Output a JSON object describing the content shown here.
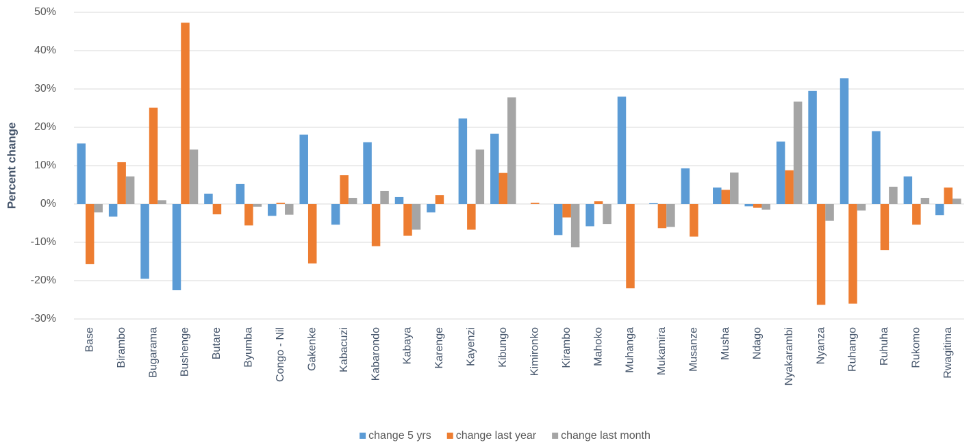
{
  "chart_data": {
    "type": "bar",
    "y_label": "Percent change",
    "categories": [
      "Base",
      "Birambo",
      "Bugarama",
      "Bushenge",
      "Butare",
      "Byumba",
      "Congo - Nil",
      "Gakenke",
      "Kabacuzi",
      "Kabarondo",
      "Kabaya",
      "Karenge",
      "Kayenzi",
      "Kibungo",
      "Kimironko",
      "Kirambo",
      "Mahoko",
      "Muhanga",
      "Mukamira",
      "Musanze",
      "Musha",
      "Ndago",
      "Nyakarambi",
      "Nyanza",
      "Ruhango",
      "Ruhuha",
      "Rukomo",
      "Rwagitima"
    ],
    "series": [
      {
        "name": "change 5 yrs",
        "color": "#5b9bd5",
        "values": [
          15.8,
          -3.3,
          -19.5,
          -22.5,
          2.7,
          5.2,
          -3.1,
          18.1,
          -5.4,
          16.1,
          1.8,
          -2.2,
          22.3,
          18.3,
          null,
          -8.1,
          -5.8,
          28.0,
          0.2,
          9.3,
          4.3,
          -0.6,
          16.3,
          29.5,
          32.8,
          19.0,
          7.2,
          -2.9
        ]
      },
      {
        "name": "change last year",
        "color": "#ed7d31",
        "values": [
          -15.7,
          10.9,
          25.1,
          47.3,
          -2.7,
          -5.6,
          0.3,
          -15.5,
          7.5,
          -11.0,
          -8.3,
          2.3,
          -6.7,
          8.1,
          0.3,
          -3.5,
          0.7,
          -22.0,
          -6.3,
          -8.5,
          3.7,
          -1.0,
          8.8,
          -26.3,
          -26.0,
          -12.0,
          -5.4,
          4.3
        ]
      },
      {
        "name": "change last month",
        "color": "#a5a5a5",
        "values": [
          -2.2,
          7.2,
          1.0,
          14.2,
          null,
          -0.7,
          -2.8,
          null,
          1.6,
          3.4,
          -6.7,
          null,
          14.2,
          27.8,
          null,
          -11.3,
          -5.2,
          null,
          -6.0,
          null,
          8.2,
          -1.5,
          26.7,
          -4.4,
          -1.7,
          4.5,
          1.6,
          1.4
        ]
      }
    ],
    "ylim": [
      -30,
      50
    ],
    "yticks": [
      {
        "value": -30,
        "label": "-30%"
      },
      {
        "value": -20,
        "label": "-20%"
      },
      {
        "value": -10,
        "label": "-10%"
      },
      {
        "value": 0,
        "label": "0%"
      },
      {
        "value": 10,
        "label": "10%"
      },
      {
        "value": 20,
        "label": "20%"
      },
      {
        "value": 30,
        "label": "30%"
      },
      {
        "value": 40,
        "label": "40%"
      },
      {
        "value": 50,
        "label": "50%"
      }
    ],
    "grid": true,
    "legend": "bottom"
  }
}
